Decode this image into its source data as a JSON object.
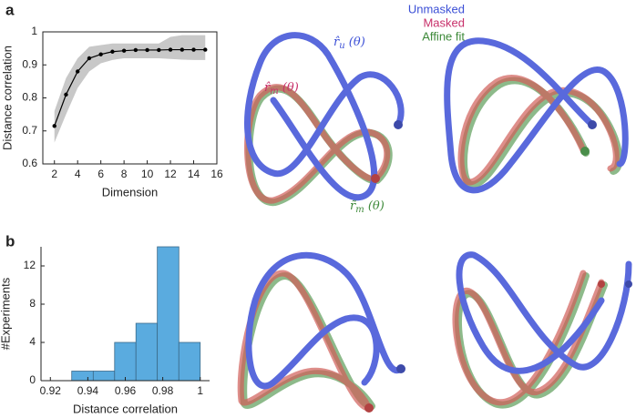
{
  "panels": [
    "a",
    "b"
  ],
  "legend": [
    {
      "name": "Unmasked",
      "color": "#3b4fd6"
    },
    {
      "name": "Masked",
      "color": "#c8306a"
    },
    {
      "name": "Affine fit",
      "color": "#3e8a3a"
    }
  ],
  "curve_labels": [
    {
      "symbol": "r̂",
      "sub": "u",
      "arg": " (θ)",
      "color": "#3b4fd6"
    },
    {
      "symbol": "r̂",
      "sub": "m",
      "arg": " (θ)",
      "color": "#c8306a"
    },
    {
      "symbol": "r̃",
      "sub": "m",
      "arg": " (θ)",
      "color": "#3e8a3a"
    }
  ],
  "chart_data": [
    {
      "type": "line",
      "xlabel": "Dimension",
      "ylabel": "Distance correlation",
      "x": [
        2,
        3,
        4,
        5,
        6,
        7,
        8,
        9,
        10,
        11,
        12,
        13,
        14,
        15
      ],
      "values": [
        0.715,
        0.81,
        0.88,
        0.92,
        0.932,
        0.94,
        0.943,
        0.945,
        0.945,
        0.945,
        0.946,
        0.946,
        0.946,
        0.946
      ],
      "band_lower": [
        0.665,
        0.75,
        0.83,
        0.88,
        0.905,
        0.915,
        0.92,
        0.92,
        0.92,
        0.92,
        0.918,
        0.916,
        0.915,
        0.915
      ],
      "band_upper": [
        0.76,
        0.86,
        0.92,
        0.955,
        0.96,
        0.965,
        0.965,
        0.965,
        0.965,
        0.965,
        0.985,
        0.99,
        0.99,
        0.99
      ],
      "color": "#000000",
      "band_color": "#c8c8c8",
      "xlim": [
        1,
        16
      ],
      "ylim": [
        0.6,
        1
      ],
      "xticks": [
        2,
        4,
        6,
        8,
        10,
        12,
        14,
        16
      ],
      "yticks": [
        0.6,
        0.7,
        0.8,
        0.9,
        1
      ],
      "box": true
    },
    {
      "type": "histogram",
      "xlabel": "Distance correlation",
      "ylabel": "#Experiments",
      "bins": [
        0.9314,
        0.9429,
        0.9543,
        0.9657,
        0.9771,
        0.9886,
        1.0
      ],
      "values": [
        1,
        1,
        4,
        6,
        14,
        4
      ],
      "color": "#5aabdf",
      "xlim": [
        0.915,
        1.005
      ],
      "ylim": [
        0,
        14
      ],
      "xticks": [
        0.92,
        0.94,
        0.96,
        0.98,
        1
      ],
      "yticks": [
        0,
        4,
        8,
        12
      ],
      "box": false
    }
  ]
}
